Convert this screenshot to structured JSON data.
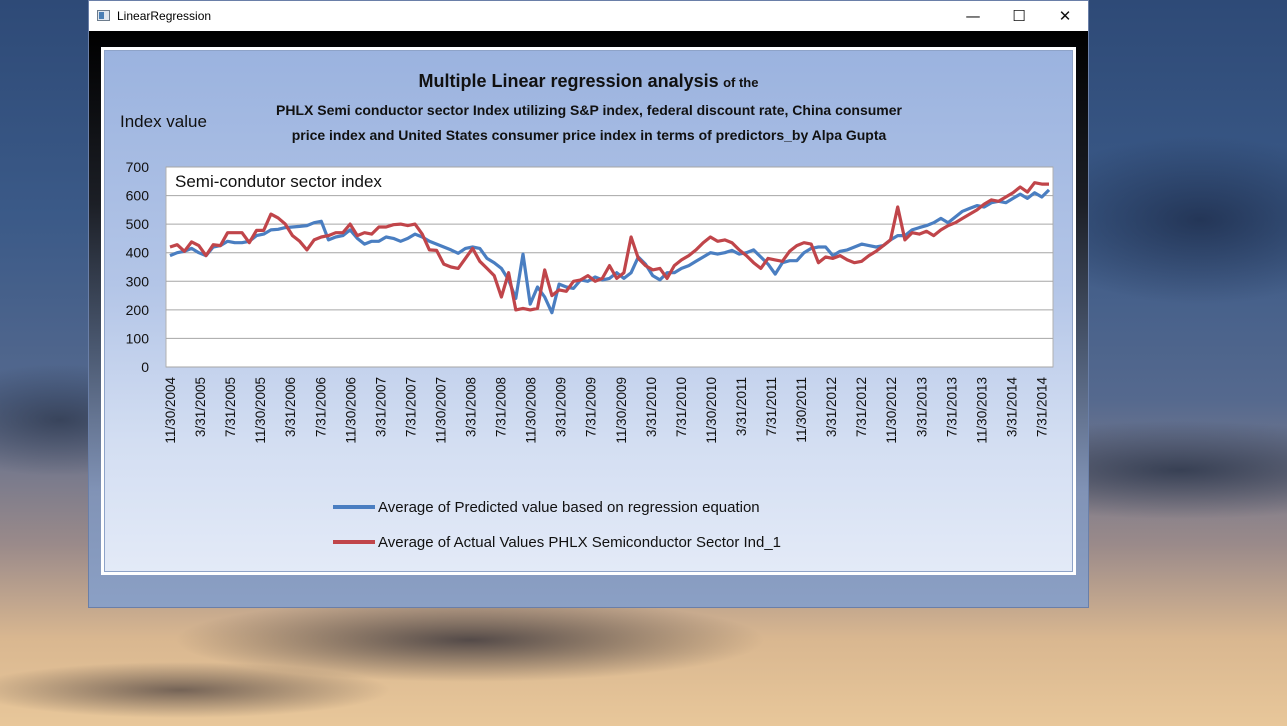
{
  "window": {
    "title": "LinearRegression",
    "minimize": "—",
    "maximize": "☐",
    "close": "✕"
  },
  "colors": {
    "predicted": "#4a7ec1",
    "actual": "#c0454a",
    "grid": "#a6a6a6"
  },
  "chart_data": {
    "type": "line",
    "title_bold": "Multiple Linear regression analysis",
    "title_rest": "of the",
    "subtitle_line1": "PHLX Semi conductor sector Index utilizing S&P index, federal discount rate, China consumer",
    "subtitle_line2": "price index and United States consumer price index in terms of predictors_by Alpa Gupta",
    "ylabel": "Index value",
    "plot_label": "Semi-condutor sector index",
    "ylim": [
      0,
      700
    ],
    "yticks": [
      "0",
      "100",
      "200",
      "300",
      "400",
      "500",
      "600",
      "700"
    ],
    "x_tick_labels": [
      "11/30/2004",
      "3/31/2005",
      "7/31/2005",
      "11/30/2005",
      "3/31/2006",
      "7/31/2006",
      "11/30/2006",
      "3/31/2007",
      "7/31/2007",
      "11/30/2007",
      "3/31/2008",
      "7/31/2008",
      "11/30/2008",
      "3/31/2009",
      "7/31/2009",
      "11/30/2009",
      "3/31/2010",
      "7/31/2010",
      "11/30/2010",
      "3/31/2011",
      "7/31/2011",
      "11/30/2011",
      "3/31/2012",
      "7/31/2012",
      "11/30/2012",
      "3/31/2013",
      "7/31/2013",
      "11/30/2013",
      "3/31/2014",
      "7/31/2014"
    ],
    "grid": true,
    "legend_position": "bottom",
    "series": [
      {
        "name": "Average of Predicted value  based on regression equation",
        "values": [
          390,
          400,
          405,
          415,
          400,
          390,
          420,
          425,
          440,
          435,
          435,
          440,
          460,
          465,
          480,
          482,
          488,
          490,
          492,
          495,
          505,
          510,
          445,
          455,
          460,
          480,
          450,
          430,
          440,
          440,
          455,
          450,
          440,
          450,
          465,
          455,
          440,
          430,
          420,
          410,
          398,
          415,
          420,
          415,
          380,
          365,
          345,
          305,
          240,
          395,
          220,
          280,
          245,
          190,
          290,
          280,
          275,
          305,
          300,
          315,
          305,
          310,
          330,
          310,
          330,
          385,
          360,
          320,
          305,
          330,
          330,
          345,
          355,
          370,
          385,
          400,
          395,
          400,
          408,
          395,
          400,
          410,
          385,
          360,
          325,
          365,
          372,
          372,
          400,
          415,
          420,
          420,
          390,
          405,
          410,
          420,
          430,
          425,
          420,
          425,
          445,
          460,
          460,
          480,
          488,
          495,
          505,
          520,
          505,
          525,
          545,
          555,
          565,
          560,
          575,
          580,
          575,
          590,
          605,
          590,
          610,
          595,
          620
        ],
        "x_start": 0
      },
      {
        "name": "Average of Actual Values PHLX Semiconductor Sector Ind_1",
        "values": [
          420,
          428,
          405,
          438,
          425,
          390,
          428,
          425,
          470,
          470,
          470,
          435,
          478,
          478,
          535,
          522,
          500,
          460,
          440,
          410,
          445,
          455,
          460,
          470,
          470,
          500,
          460,
          470,
          465,
          490,
          490,
          498,
          500,
          495,
          500,
          465,
          410,
          408,
          360,
          350,
          345,
          380,
          415,
          370,
          345,
          320,
          245,
          330,
          200,
          205,
          200,
          205,
          340,
          250,
          270,
          265,
          300,
          305,
          320,
          300,
          310,
          355,
          310,
          330,
          455,
          380,
          355,
          340,
          345,
          310,
          355,
          375,
          390,
          410,
          435,
          455,
          440,
          445,
          435,
          410,
          390,
          365,
          345,
          380,
          375,
          370,
          405,
          425,
          435,
          430,
          365,
          385,
          380,
          390,
          375,
          365,
          370,
          390,
          405,
          425,
          445,
          560,
          445,
          470,
          465,
          475,
          460,
          480,
          495,
          505,
          520,
          535,
          550,
          570,
          585,
          580,
          595,
          610,
          630,
          612,
          645,
          640,
          640
        ],
        "x_start": 0
      }
    ]
  }
}
